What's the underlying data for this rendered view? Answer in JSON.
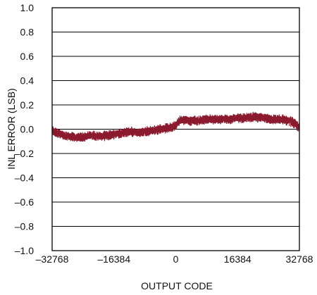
{
  "chart_data": {
    "type": "line",
    "title": "",
    "xlabel": "OUTPUT CODE",
    "ylabel": "INL ERROR (LSB)",
    "xlim": [
      -32768,
      32768
    ],
    "ylim": [
      -1.0,
      1.0
    ],
    "x_ticks": [
      -32768,
      -16384,
      0,
      16384,
      32768
    ],
    "x_tick_labels": [
      "–32768",
      "–16384",
      "0",
      "16384",
      "32768"
    ],
    "y_ticks": [
      1.0,
      0.8,
      0.6,
      0.4,
      0.2,
      0.0,
      -0.2,
      -0.4,
      -0.6,
      -0.8,
      -1.0
    ],
    "y_tick_labels": [
      "1.0",
      "0.8",
      "0.6",
      "0.4",
      "0.2",
      "0.0",
      "–0.2",
      "–0.4",
      "–0.6",
      "–0.8",
      "–1.0"
    ],
    "grid": "horizontal",
    "series": [
      {
        "color": "#8b1a2e",
        "band_half_width": 0.035,
        "x": [
          -32768,
          -30000,
          -28000,
          -26000,
          -24000,
          -22000,
          -20000,
          -18000,
          -16000,
          -14000,
          -12000,
          -10000,
          -8000,
          -6000,
          -4000,
          -2000,
          0,
          1000,
          2000,
          4000,
          6000,
          8000,
          10000,
          12000,
          14000,
          16000,
          18000,
          20000,
          22000,
          24000,
          26000,
          28000,
          30000,
          31500,
          32768
        ],
        "y": [
          -0.01,
          -0.05,
          -0.06,
          -0.07,
          -0.06,
          -0.05,
          -0.06,
          -0.05,
          -0.04,
          -0.03,
          -0.02,
          -0.03,
          -0.02,
          -0.01,
          0.0,
          0.01,
          0.03,
          0.07,
          0.08,
          0.07,
          0.07,
          0.08,
          0.08,
          0.08,
          0.08,
          0.09,
          0.09,
          0.1,
          0.1,
          0.09,
          0.08,
          0.08,
          0.07,
          0.05,
          0.01
        ]
      }
    ]
  }
}
